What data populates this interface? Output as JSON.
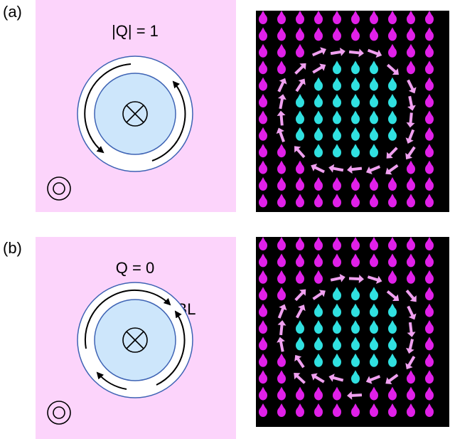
{
  "panels": [
    {
      "label": "(a)",
      "charge": "|Q| = 1"
    },
    {
      "label": "(b)",
      "charge": "Q = 0",
      "boundary_label": "BL"
    }
  ]
}
